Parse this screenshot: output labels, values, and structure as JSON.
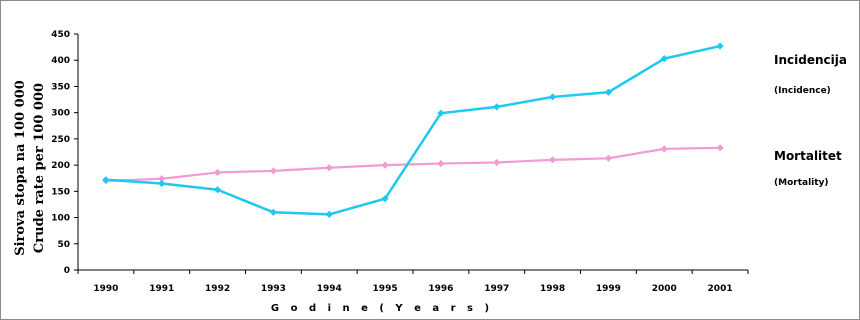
{
  "chart_data": {
    "type": "line",
    "x": [
      "1990",
      "1991",
      "1992",
      "1993",
      "1994",
      "1995",
      "1996",
      "1997",
      "1998",
      "1999",
      "2000",
      "2001"
    ],
    "xlabel": "G o d i n e   ( Y e a r s )",
    "ylabel_line1": "Sirova stopa na  100 000",
    "ylabel_line2": "Crude rate per 100 000",
    "ylim": [
      0,
      450
    ],
    "yticks": [
      "0",
      "50",
      "100",
      "150",
      "200",
      "250",
      "300",
      "350",
      "400",
      "450"
    ],
    "grid": false,
    "legend_placement": "right",
    "series": [
      {
        "name": "Incidencija",
        "name_sub": "(Incidence)",
        "color": "#1ec8f0",
        "values": [
          172,
          165,
          153,
          110,
          106,
          136,
          299,
          311,
          330,
          339,
          403,
          427
        ]
      },
      {
        "name": "Mortalitet",
        "name_sub": "(Mortality)",
        "color": "#f29ad4",
        "values": [
          170,
          174,
          186,
          189,
          195,
          200,
          203,
          205,
          210,
          213,
          231,
          233
        ]
      }
    ]
  }
}
